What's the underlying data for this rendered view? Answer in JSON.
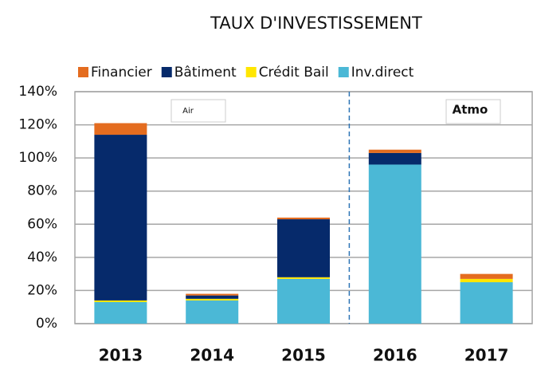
{
  "chart_data": {
    "type": "stacked_bar",
    "title": "TAUX D'INVESTISSEMENT",
    "categories": [
      "2013",
      "2014",
      "2015",
      "2016",
      "2017"
    ],
    "series": [
      {
        "name": "Inv.direct",
        "color": "#4bb8d6",
        "values": [
          13,
          14,
          27,
          96,
          25
        ]
      },
      {
        "name": "Crédit Bail",
        "color": "#ffe600",
        "values": [
          1,
          1,
          1,
          0,
          2
        ]
      },
      {
        "name": "Bâtiment",
        "color": "#062a6b",
        "values": [
          100,
          2,
          35,
          7,
          0
        ]
      },
      {
        "name": "Financier",
        "color": "#e46c1f",
        "values": [
          7,
          1,
          1,
          2,
          3
        ]
      }
    ],
    "ylim": [
      0,
      140
    ],
    "yticks": [
      {
        "value": 0,
        "label": "0%"
      },
      {
        "value": 20,
        "label": "20%"
      },
      {
        "value": 40,
        "label": "40%"
      },
      {
        "value": 60,
        "label": "60%"
      },
      {
        "value": 80,
        "label": "80%"
      },
      {
        "value": 100,
        "label": "100%"
      },
      {
        "value": 120,
        "label": "120%"
      },
      {
        "value": 140,
        "label": "140%"
      }
    ],
    "grid": true,
    "legend": "top",
    "logos": [
      "Air",
      "Atmo"
    ]
  }
}
